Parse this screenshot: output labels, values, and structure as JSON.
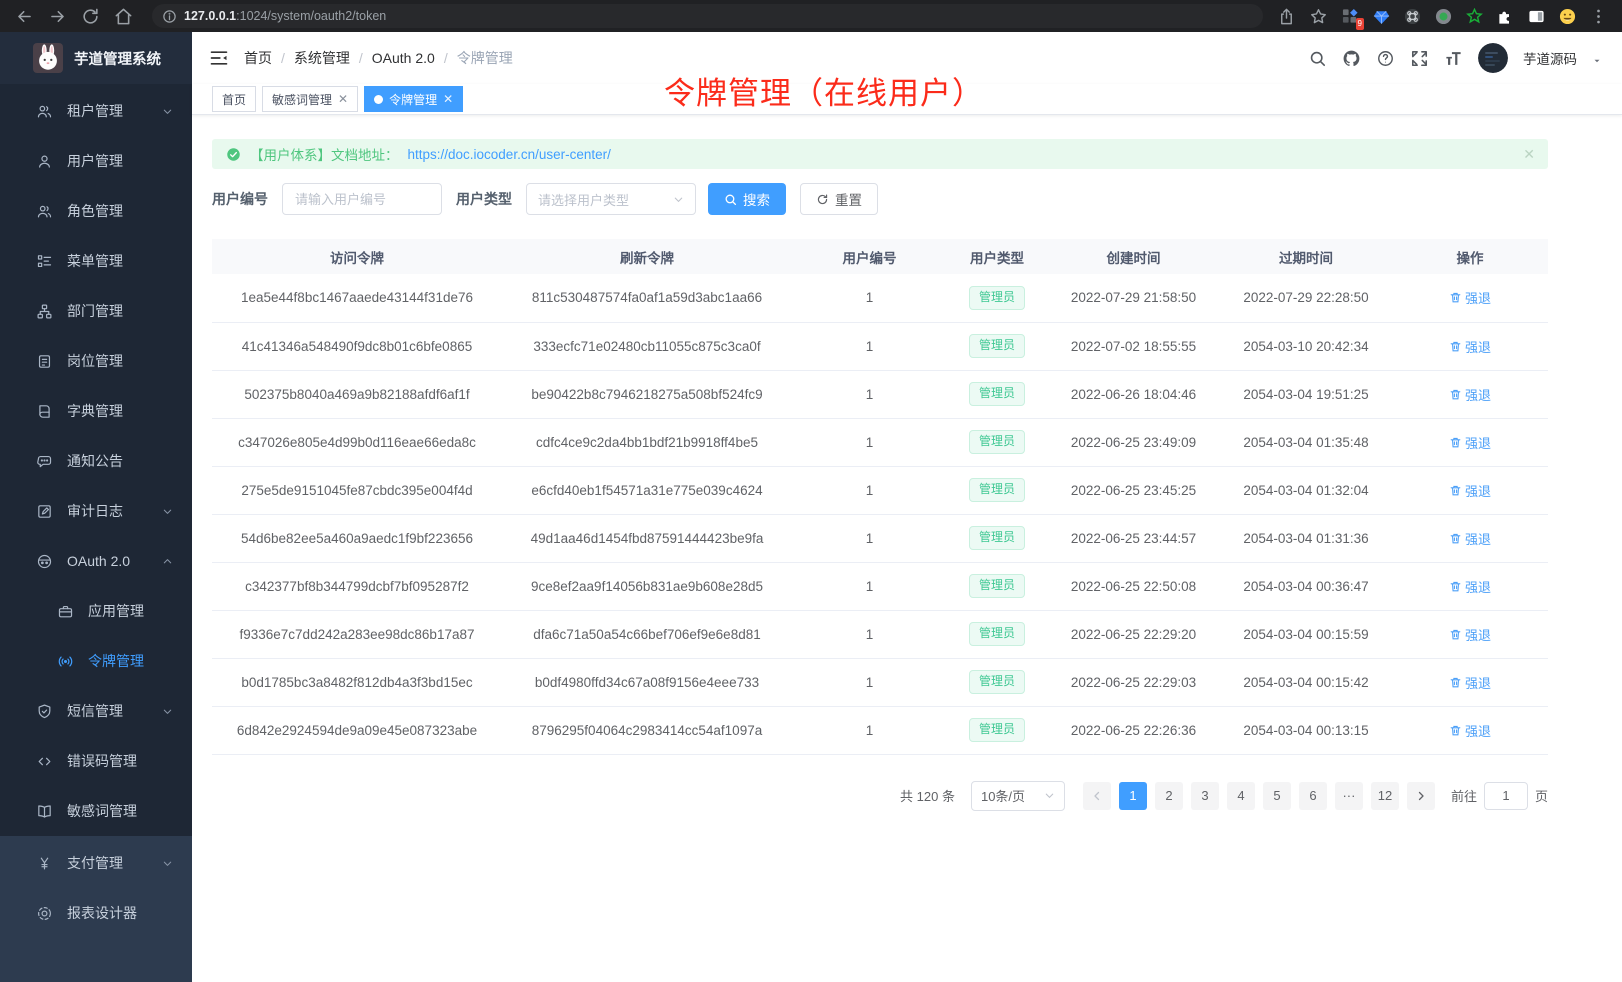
{
  "browser": {
    "url_host": "127.0.0.1",
    "url_rest": ":1024/system/oauth2/token",
    "extensions": [
      "apps-icon",
      "gem-icon",
      "command-icon",
      "record-icon",
      "star-green-icon",
      "puzzle-icon",
      "side-panel-icon",
      "emoji-icon"
    ],
    "extension_badge": "9"
  },
  "app": {
    "title": "芋道管理系统",
    "breadcrumb": [
      "首页",
      "系统管理",
      "OAuth 2.0",
      "令牌管理"
    ],
    "user_name": "芋道源码"
  },
  "annotation": "令牌管理（在线用户）",
  "tabs": [
    {
      "label": "首页",
      "closable": false,
      "active": false
    },
    {
      "label": "敏感词管理",
      "closable": true,
      "active": false
    },
    {
      "label": "令牌管理",
      "closable": true,
      "active": true
    }
  ],
  "sidebar": {
    "items": [
      {
        "icon": "users",
        "label": "租户管理",
        "chevron": "down"
      },
      {
        "icon": "user",
        "label": "用户管理"
      },
      {
        "icon": "role",
        "label": "角色管理"
      },
      {
        "icon": "tree",
        "label": "菜单管理"
      },
      {
        "icon": "org",
        "label": "部门管理"
      },
      {
        "icon": "post",
        "label": "岗位管理"
      },
      {
        "icon": "dict",
        "label": "字典管理"
      },
      {
        "icon": "notice",
        "label": "通知公告"
      },
      {
        "icon": "log",
        "label": "审计日志",
        "chevron": "down"
      },
      {
        "icon": "oauth",
        "label": "OAuth 2.0",
        "chevron": "up"
      },
      {
        "icon": "app",
        "label": "应用管理",
        "sub": true
      },
      {
        "icon": "token",
        "label": "令牌管理",
        "sub": true,
        "active": true
      },
      {
        "icon": "sms",
        "label": "短信管理",
        "chevron": "down"
      },
      {
        "icon": "errcode",
        "label": "错误码管理"
      },
      {
        "icon": "sensitive",
        "label": "敏感词管理"
      },
      {
        "icon": "pay",
        "label": "支付管理",
        "chevron": "down",
        "light": true
      },
      {
        "icon": "report",
        "label": "报表设计器",
        "light": true
      }
    ]
  },
  "alert": {
    "text": "【用户体系】文档地址：",
    "link": "https://doc.iocoder.cn/user-center/"
  },
  "filters": {
    "user_id_label": "用户编号",
    "user_id_placeholder": "请输入用户编号",
    "user_type_label": "用户类型",
    "user_type_placeholder": "请选择用户类型",
    "search_label": "搜索",
    "reset_label": "重置"
  },
  "table": {
    "columns": [
      "访问令牌",
      "刷新令牌",
      "用户编号",
      "用户类型",
      "创建时间",
      "过期时间",
      "操作"
    ],
    "action_label": "强退",
    "rows": [
      {
        "access": "1ea5e44f8bc1467aaede43144f31de76",
        "refresh": "811c530487574fa0af1a59d3abc1aa66",
        "user_id": "1",
        "user_type": "管理员",
        "created": "2022-07-29 21:58:50",
        "expires": "2022-07-29 22:28:50"
      },
      {
        "access": "41c41346a548490f9dc8b01c6bfe0865",
        "refresh": "333ecfc71e02480cb11055c875c3ca0f",
        "user_id": "1",
        "user_type": "管理员",
        "created": "2022-07-02 18:55:55",
        "expires": "2054-03-10 20:42:34"
      },
      {
        "access": "502375b8040a469a9b82188afdf6af1f",
        "refresh": "be90422b8c7946218275a508bf524fc9",
        "user_id": "1",
        "user_type": "管理员",
        "created": "2022-06-26 18:04:46",
        "expires": "2054-03-04 19:51:25"
      },
      {
        "access": "c347026e805e4d99b0d116eae66eda8c",
        "refresh": "cdfc4ce9c2da4bb1bdf21b9918ff4be5",
        "user_id": "1",
        "user_type": "管理员",
        "created": "2022-06-25 23:49:09",
        "expires": "2054-03-04 01:35:48"
      },
      {
        "access": "275e5de9151045fe87cbdc395e004f4d",
        "refresh": "e6cfd40eb1f54571a31e775e039c4624",
        "user_id": "1",
        "user_type": "管理员",
        "created": "2022-06-25 23:45:25",
        "expires": "2054-03-04 01:32:04"
      },
      {
        "access": "54d6be82ee5a460a9aedc1f9bf223656",
        "refresh": "49d1aa46d1454fbd87591444423be9fa",
        "user_id": "1",
        "user_type": "管理员",
        "created": "2022-06-25 23:44:57",
        "expires": "2054-03-04 01:31:36"
      },
      {
        "access": "c342377bf8b344799dcbf7bf095287f2",
        "refresh": "9ce8ef2aa9f14056b831ae9b608e28d5",
        "user_id": "1",
        "user_type": "管理员",
        "created": "2022-06-25 22:50:08",
        "expires": "2054-03-04 00:36:47"
      },
      {
        "access": "f9336e7c7dd242a283ee98dc86b17a87",
        "refresh": "dfa6c71a50a54c66bef706ef9e6e8d81",
        "user_id": "1",
        "user_type": "管理员",
        "created": "2022-06-25 22:29:20",
        "expires": "2054-03-04 00:15:59"
      },
      {
        "access": "b0d1785bc3a8482f812db4a3f3bd15ec",
        "refresh": "b0df4980ffd34c67a08f9156e4eee733",
        "user_id": "1",
        "user_type": "管理员",
        "created": "2022-06-25 22:29:03",
        "expires": "2054-03-04 00:15:42"
      },
      {
        "access": "6d842e2924594de9a09e45e087323abe",
        "refresh": "8796295f04064c2983414cc54af1097a",
        "user_id": "1",
        "user_type": "管理员",
        "created": "2022-06-25 22:26:36",
        "expires": "2054-03-04 00:13:15"
      }
    ]
  },
  "pagination": {
    "total": "共 120 条",
    "page_size": "10条/页",
    "pages": [
      "1",
      "2",
      "3",
      "4",
      "5",
      "6",
      "···",
      "12"
    ],
    "active_page": "1",
    "goto_label": "前往",
    "goto_value": "1",
    "page_unit": "页"
  }
}
